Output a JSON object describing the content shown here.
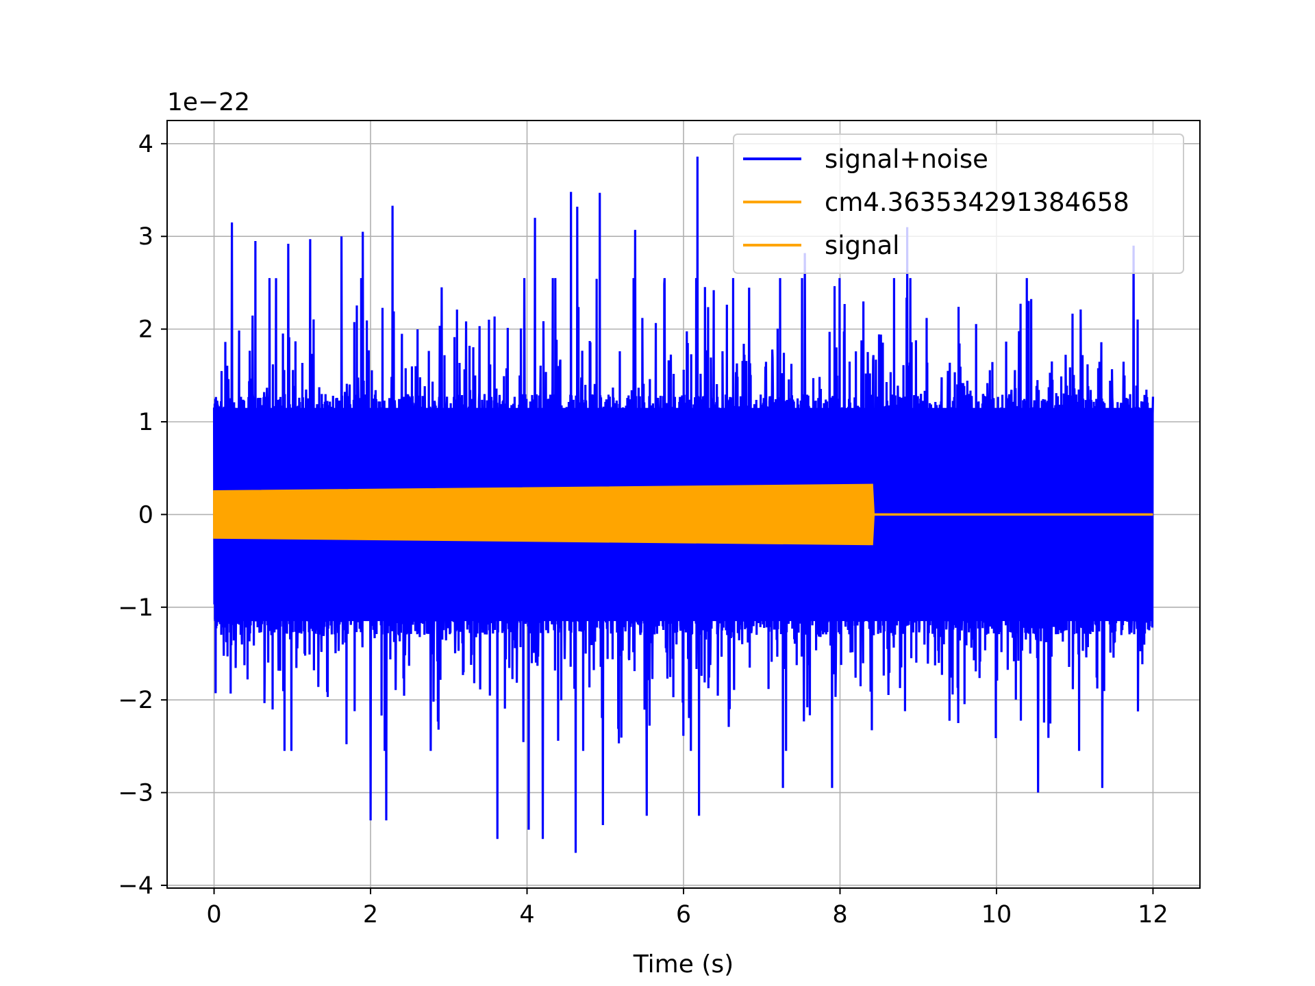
{
  "chart_data": {
    "type": "line",
    "title": "",
    "xlabel": "Time (s)",
    "ylabel": "",
    "y_offset_label": "1e−22",
    "y_scale_factor": 1e-22,
    "xlim": [
      -0.6,
      12.6
    ],
    "ylim": [
      -4.03,
      4.25
    ],
    "x_ticks": [
      0,
      2,
      4,
      6,
      8,
      10,
      12
    ],
    "x_tick_labels": [
      "0",
      "2",
      "4",
      "6",
      "8",
      "10",
      "12"
    ],
    "y_ticks": [
      -4,
      -3,
      -2,
      -1,
      0,
      1,
      2,
      3,
      4
    ],
    "y_tick_labels": [
      "−4",
      "−3",
      "−2",
      "−1",
      "0",
      "1",
      "2",
      "3",
      "4"
    ],
    "grid": true,
    "legend_position": "top-right",
    "series": [
      {
        "name": "signal+noise",
        "color": "#0000ff",
        "x_range": [
          0,
          12
        ],
        "typical_amplitude": 1.3,
        "peaks": [
          {
            "x": 0.23,
            "y": 3.15
          },
          {
            "x": 0.53,
            "y": 2.95
          },
          {
            "x": 0.95,
            "y": 2.92
          },
          {
            "x": 1.23,
            "y": 2.97
          },
          {
            "x": 1.63,
            "y": 3.0
          },
          {
            "x": 1.9,
            "y": 3.05
          },
          {
            "x": 2.28,
            "y": 3.33
          },
          {
            "x": 3.62,
            "y": 2.75
          },
          {
            "x": 4.1,
            "y": 3.2
          },
          {
            "x": 4.56,
            "y": 3.48
          },
          {
            "x": 4.64,
            "y": 3.32
          },
          {
            "x": 4.93,
            "y": 3.47
          },
          {
            "x": 5.38,
            "y": 3.07
          },
          {
            "x": 6.18,
            "y": 3.86
          },
          {
            "x": 7.27,
            "y": 2.9
          },
          {
            "x": 7.55,
            "y": 2.82
          },
          {
            "x": 8.86,
            "y": 3.1
          },
          {
            "x": 11.75,
            "y": 2.9
          },
          {
            "x": 2.0,
            "y": -3.3
          },
          {
            "x": 2.2,
            "y": -3.3
          },
          {
            "x": 3.62,
            "y": -3.5
          },
          {
            "x": 4.02,
            "y": -3.4
          },
          {
            "x": 4.2,
            "y": -3.5
          },
          {
            "x": 4.62,
            "y": -3.65
          },
          {
            "x": 4.97,
            "y": -3.35
          },
          {
            "x": 5.53,
            "y": -3.25
          },
          {
            "x": 6.2,
            "y": -3.25
          },
          {
            "x": 7.27,
            "y": -2.95
          },
          {
            "x": 7.9,
            "y": -2.95
          },
          {
            "x": 10.53,
            "y": -3.0
          },
          {
            "x": 11.35,
            "y": -2.95
          }
        ]
      },
      {
        "name": "cm4.363534291384658",
        "color": "#ffa500",
        "envelope": [
          {
            "x": 0.0,
            "amp": 0.25
          },
          {
            "x": 8.41,
            "amp": 0.32
          },
          {
            "x": 8.43,
            "amp": 0.0
          },
          {
            "x": 12.0,
            "amp": 0.0
          }
        ]
      },
      {
        "name": "signal",
        "color": "#ffa500",
        "envelope": [
          {
            "x": 0.0,
            "amp": 0.25
          },
          {
            "x": 8.41,
            "amp": 0.32
          },
          {
            "x": 8.43,
            "amp": 0.0
          },
          {
            "x": 12.0,
            "amp": 0.0
          }
        ]
      }
    ]
  }
}
